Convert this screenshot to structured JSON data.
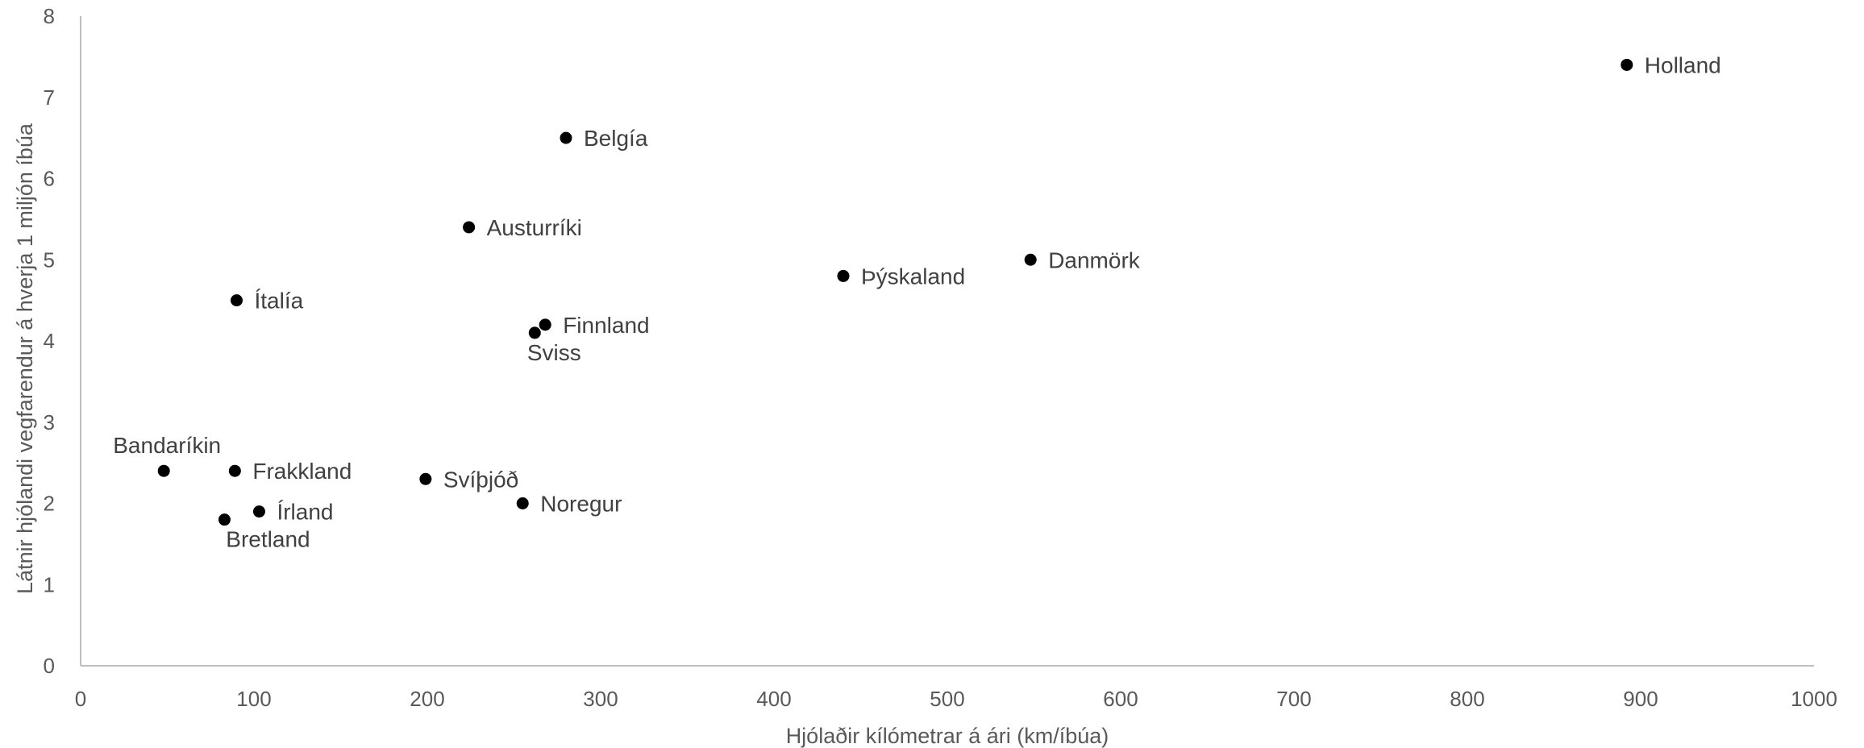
{
  "chart_data": {
    "type": "scatter",
    "title": "",
    "xlabel": "Hjólaðir kílómetrar á ári (km/íbúa)",
    "ylabel": "Látnir hjólandi vegfarendur á hverja 1 miljón íbúa",
    "xlim": [
      0,
      1000
    ],
    "ylim": [
      0,
      8
    ],
    "x_ticks": [
      "0",
      "100",
      "200",
      "300",
      "400",
      "500",
      "600",
      "700",
      "800",
      "900",
      "1000"
    ],
    "y_ticks": [
      "0",
      "1",
      "2",
      "3",
      "4",
      "5",
      "6",
      "7",
      "8"
    ],
    "grid": false,
    "legend": "none",
    "marker_color": "#000000",
    "points": [
      {
        "label": "Holland",
        "x": 892,
        "y": 7.4
      },
      {
        "label": "Belgía",
        "x": 280,
        "y": 6.5
      },
      {
        "label": "Austurríki",
        "x": 224,
        "y": 5.4
      },
      {
        "label": "Danmörk",
        "x": 548,
        "y": 5.0
      },
      {
        "label": "Þýskaland",
        "x": 440,
        "y": 4.8
      },
      {
        "label": "Ítalía",
        "x": 90,
        "y": 4.5
      },
      {
        "label": "Finnland",
        "x": 268,
        "y": 4.2
      },
      {
        "label": "Sviss",
        "x": 262,
        "y": 4.1
      },
      {
        "label": "Bandaríkin",
        "x": 48,
        "y": 2.4
      },
      {
        "label": "Frakkland",
        "x": 89,
        "y": 2.4
      },
      {
        "label": "Svíþjóð",
        "x": 199,
        "y": 2.3
      },
      {
        "label": "Noregur",
        "x": 255,
        "y": 2.0
      },
      {
        "label": "Írland",
        "x": 103,
        "y": 1.9
      },
      {
        "label": "Bretland",
        "x": 83,
        "y": 1.8
      }
    ]
  }
}
